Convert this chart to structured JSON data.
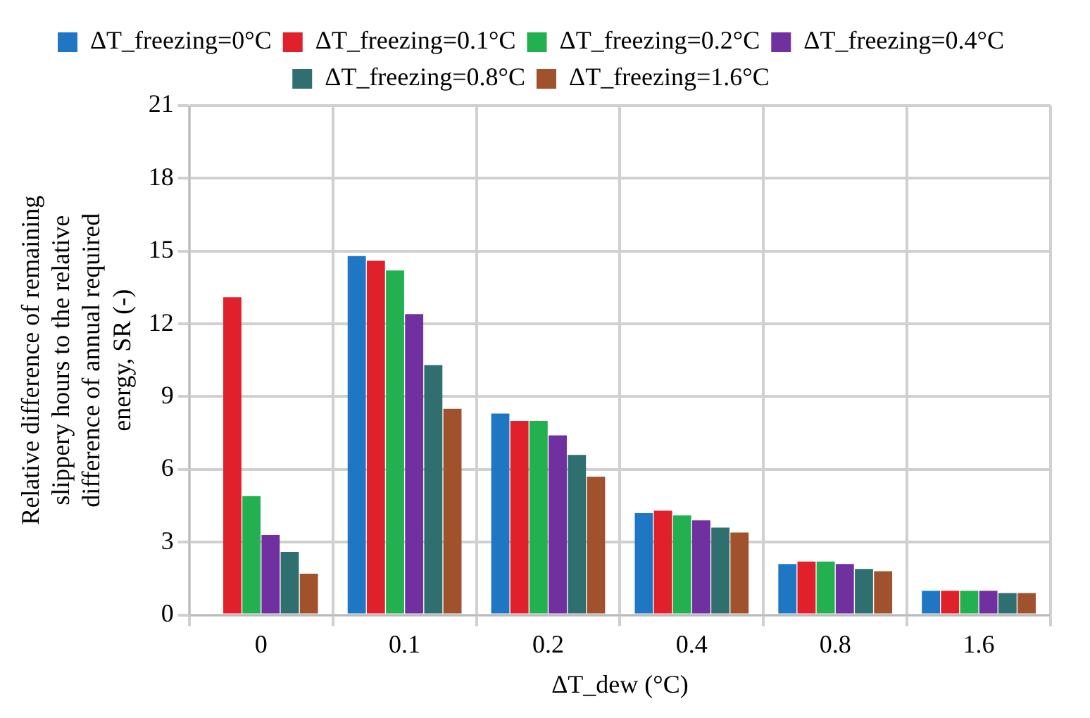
{
  "chart_data": {
    "type": "bar",
    "xlabel": "ΔT_dew (°C)",
    "ylabel": "Relative difference of remaining slippery hours to the relative difference of annual required energy, SR (-)",
    "categories": [
      "0",
      "0.1",
      "0.2",
      "0.4",
      "0.8",
      "1.6"
    ],
    "series": [
      {
        "name": "ΔT_freezing=0°C",
        "color": "#1f77c4",
        "values": [
          null,
          14.8,
          8.3,
          4.2,
          2.1,
          1.0
        ]
      },
      {
        "name": "ΔT_freezing=0.1°C",
        "color": "#e0202a",
        "values": [
          13.1,
          14.6,
          8.0,
          4.3,
          2.2,
          1.0
        ]
      },
      {
        "name": "ΔT_freezing=0.2°C",
        "color": "#22b050",
        "values": [
          4.9,
          14.2,
          8.0,
          4.1,
          2.2,
          1.0
        ]
      },
      {
        "name": "ΔT_freezing=0.4°C",
        "color": "#7030a0",
        "values": [
          3.3,
          12.4,
          7.4,
          3.9,
          2.1,
          1.0
        ]
      },
      {
        "name": "ΔT_freezing=0.8°C",
        "color": "#2f6f70",
        "values": [
          2.6,
          10.3,
          6.6,
          3.6,
          1.9,
          0.9
        ]
      },
      {
        "name": "ΔT_freezing=1.6°C",
        "color": "#a0522d",
        "values": [
          1.7,
          8.5,
          5.7,
          3.4,
          1.8,
          0.9
        ]
      }
    ],
    "ylim": [
      0,
      21
    ],
    "yticks": [
      0,
      3,
      6,
      9,
      12,
      15,
      18,
      21
    ],
    "grid": true,
    "legend": "top"
  }
}
